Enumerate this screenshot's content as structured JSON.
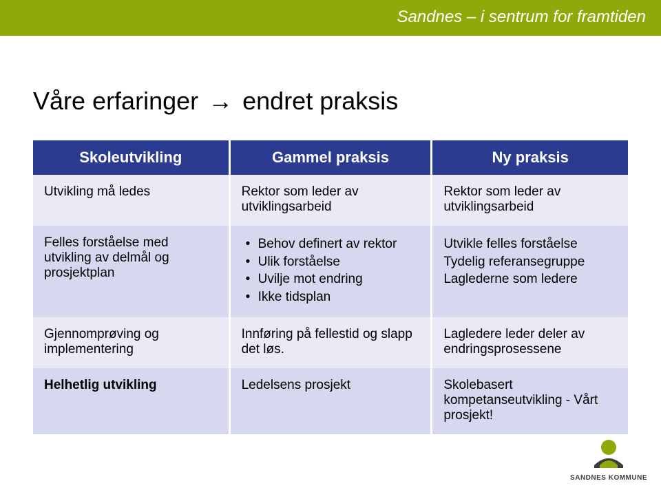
{
  "colors": {
    "banner_bg": "#8eaa0a",
    "accent_dot": "#8eaa0a",
    "table_header_bg": "#2b3b8f",
    "row_alt_a": "#eaeaf6",
    "row_alt_b": "#d5d8ee",
    "logo_primary": "#8eaa0a",
    "logo_dark": "#3b3b3b"
  },
  "banner": {
    "slogan": "Sandnes – i sentrum for framtiden"
  },
  "title": {
    "left": "Våre erfaringer",
    "arrow_glyph": "→",
    "right": "endret praksis"
  },
  "table": {
    "headers": [
      "Skoleutvikling",
      "Gammel praksis",
      "Ny praksis"
    ],
    "column_widths_pct": [
      33,
      34,
      33
    ],
    "rows": [
      {
        "c0": {
          "type": "text",
          "value": "Utvikling må ledes"
        },
        "c1": {
          "type": "text",
          "value": "Rektor som leder av utviklingsarbeid"
        },
        "c2": {
          "type": "text",
          "value": "Rektor som leder av utviklingsarbeid"
        }
      },
      {
        "c0": {
          "type": "text",
          "value": "Felles forståelse med utvikling av delmål og prosjektplan"
        },
        "c1": {
          "type": "bullets",
          "items": [
            "Behov definert av rektor",
            "Ulik forståelse",
            "Uvilje mot endring",
            "Ikke tidsplan"
          ]
        },
        "c2": {
          "type": "lines",
          "items": [
            "Utvikle felles forståelse",
            "Tydelig referansegruppe",
            "Laglederne som ledere"
          ]
        }
      },
      {
        "c0": {
          "type": "text",
          "value": "Gjennomprøving og implementering"
        },
        "c1": {
          "type": "text",
          "value": "Innføring på fellestid og slapp det løs."
        },
        "c2": {
          "type": "text",
          "value": "Lagledere leder deler av endringsprosessene"
        }
      },
      {
        "c0_bold": true,
        "c0": {
          "type": "text",
          "value": "Helhetlig utvikling"
        },
        "c1": {
          "type": "text",
          "value": "Ledelsens prosjekt"
        },
        "c2": {
          "type": "text",
          "value": "Skolebasert kompetanseutvikling - Vårt prosjekt!"
        }
      }
    ]
  },
  "footer": {
    "logo_text": "SANDNES KOMMUNE"
  }
}
